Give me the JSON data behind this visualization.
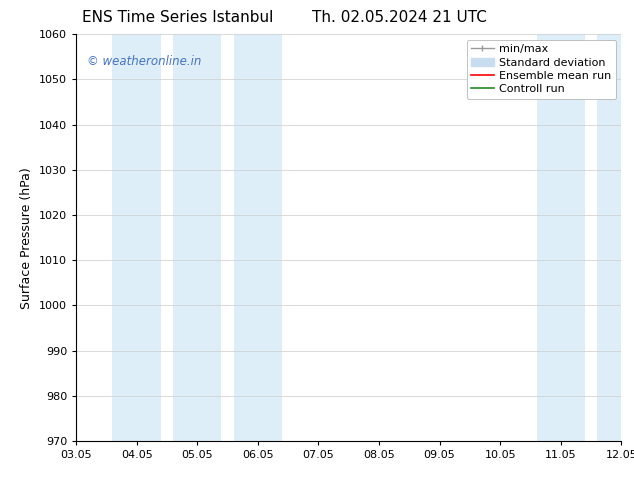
{
  "title_left": "ENS Time Series Istanbul",
  "title_right": "Th. 02.05.2024 21 UTC",
  "ylabel": "Surface Pressure (hPa)",
  "ylim": [
    970,
    1060
  ],
  "yticks": [
    970,
    980,
    990,
    1000,
    1010,
    1020,
    1030,
    1040,
    1050,
    1060
  ],
  "xtick_labels": [
    "03.05",
    "04.05",
    "05.05",
    "06.05",
    "07.05",
    "08.05",
    "09.05",
    "10.05",
    "11.05",
    "12.05"
  ],
  "xtick_positions": [
    0,
    1,
    2,
    3,
    4,
    5,
    6,
    7,
    8,
    9
  ],
  "xlim": [
    0,
    9
  ],
  "shaded_bands": [
    {
      "x_start": 0.6,
      "x_end": 1.4,
      "color": "#ddeef8"
    },
    {
      "x_start": 1.6,
      "x_end": 2.4,
      "color": "#ddeef8"
    },
    {
      "x_start": 2.6,
      "x_end": 3.4,
      "color": "#ddeef8"
    },
    {
      "x_start": 7.6,
      "x_end": 8.4,
      "color": "#ddeef8"
    },
    {
      "x_start": 8.6,
      "x_end": 9.0,
      "color": "#ddeef8"
    }
  ],
  "watermark_text": "© weatheronline.in",
  "watermark_color": "#4472c4",
  "bg_color": "#ffffff",
  "grid_color": "#cccccc",
  "title_fontsize": 11,
  "tick_fontsize": 8,
  "ylabel_fontsize": 9,
  "legend_fontsize": 8
}
